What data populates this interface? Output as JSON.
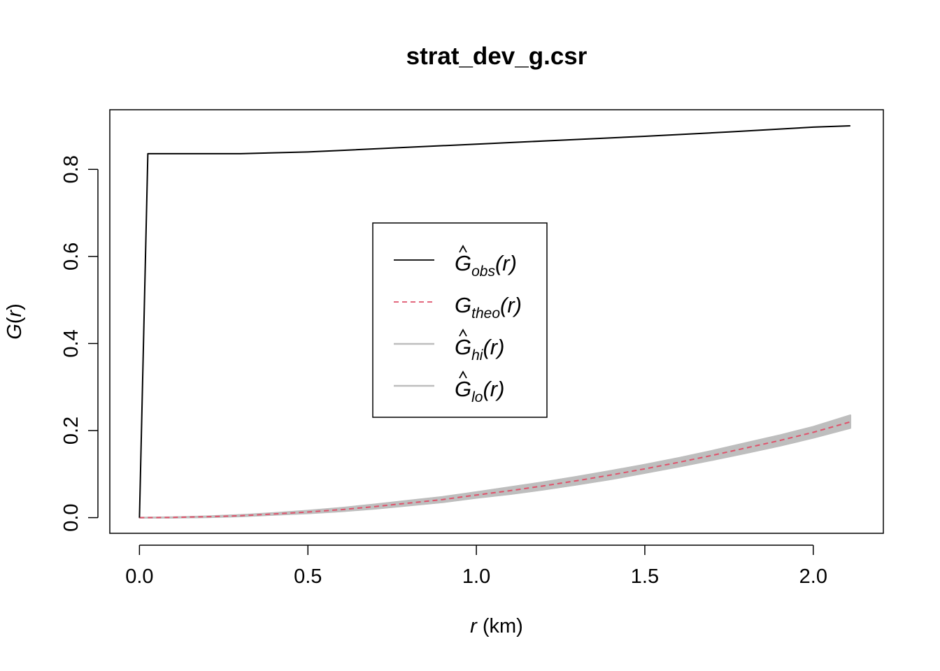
{
  "chart_data": {
    "type": "line",
    "title": "strat_dev_g.csr",
    "xlabel": {
      "var": "r",
      "unit": " (km)"
    },
    "ylabel": {
      "var": "G",
      "arg": "r"
    },
    "xlim": [
      -0.088,
      2.208
    ],
    "ylim": [
      -0.036,
      0.937
    ],
    "xticks": [
      0.0,
      0.5,
      1.0,
      1.5,
      2.0
    ],
    "xtick_labels": [
      "0.0",
      "0.5",
      "1.0",
      "1.5",
      "2.0"
    ],
    "yticks": [
      0.0,
      0.2,
      0.4,
      0.6,
      0.8
    ],
    "ytick_labels": [
      "0.0",
      "0.2",
      "0.4",
      "0.6",
      "0.8"
    ],
    "grid": false,
    "legend_position": "center",
    "series": [
      {
        "name": "G_obs(r)",
        "legend": {
          "symbol": "G",
          "hat": true,
          "sub": "obs",
          "arg": "(r)"
        },
        "color": "#000000",
        "style": "solid",
        "x": [
          0.0,
          0.025,
          0.3,
          0.5,
          0.75,
          1.0,
          1.25,
          1.5,
          1.75,
          2.0,
          2.11
        ],
        "y": [
          0.0,
          0.836,
          0.836,
          0.84,
          0.849,
          0.858,
          0.867,
          0.876,
          0.886,
          0.897,
          0.9
        ]
      },
      {
        "name": "G_theo(r)",
        "legend": {
          "symbol": "G",
          "hat": false,
          "sub": "theo",
          "arg": "(r)"
        },
        "color": "#DF536B",
        "style": "dashed",
        "x": [
          0.0,
          0.1,
          0.2,
          0.3,
          0.4,
          0.5,
          0.6,
          0.7,
          0.8,
          0.9,
          1.0,
          1.1,
          1.2,
          1.3,
          1.4,
          1.5,
          1.6,
          1.7,
          1.8,
          1.9,
          2.0,
          2.11
        ],
        "y": [
          0.0,
          0.0005,
          0.002,
          0.0045,
          0.0085,
          0.013,
          0.0185,
          0.0255,
          0.0335,
          0.0415,
          0.052,
          0.062,
          0.073,
          0.085,
          0.098,
          0.112,
          0.127,
          0.143,
          0.16,
          0.177,
          0.196,
          0.22
        ]
      },
      {
        "name": "G_hi(r)",
        "legend": {
          "symbol": "G",
          "hat": true,
          "sub": "hi",
          "arg": "(r)"
        },
        "color": "#BEBEBE",
        "style": "band-upper",
        "x": [
          0.0,
          0.1,
          0.2,
          0.3,
          0.4,
          0.5,
          0.6,
          0.7,
          0.8,
          0.9,
          1.0,
          1.1,
          1.2,
          1.3,
          1.4,
          1.5,
          1.6,
          1.7,
          1.8,
          1.9,
          2.0,
          2.11
        ],
        "y": [
          0.0,
          0.001,
          0.003,
          0.006,
          0.0105,
          0.016,
          0.0225,
          0.0305,
          0.039,
          0.0475,
          0.0585,
          0.07,
          0.0815,
          0.094,
          0.1075,
          0.1215,
          0.137,
          0.1535,
          0.1715,
          0.189,
          0.2085,
          0.235
        ]
      },
      {
        "name": "G_lo(r)",
        "legend": {
          "symbol": "G",
          "hat": true,
          "sub": "lo",
          "arg": "(r)"
        },
        "color": "#BEBEBE",
        "style": "band-lower",
        "x": [
          0.0,
          0.1,
          0.2,
          0.3,
          0.4,
          0.5,
          0.6,
          0.7,
          0.8,
          0.9,
          1.0,
          1.1,
          1.2,
          1.3,
          1.4,
          1.5,
          1.6,
          1.7,
          1.8,
          1.9,
          2.0,
          2.11
        ],
        "y": [
          0.0,
          0.0,
          0.001,
          0.003,
          0.0065,
          0.01,
          0.0145,
          0.0205,
          0.028,
          0.0355,
          0.0455,
          0.054,
          0.0645,
          0.076,
          0.0885,
          0.1025,
          0.117,
          0.1325,
          0.1485,
          0.165,
          0.1835,
          0.206
        ]
      }
    ]
  }
}
